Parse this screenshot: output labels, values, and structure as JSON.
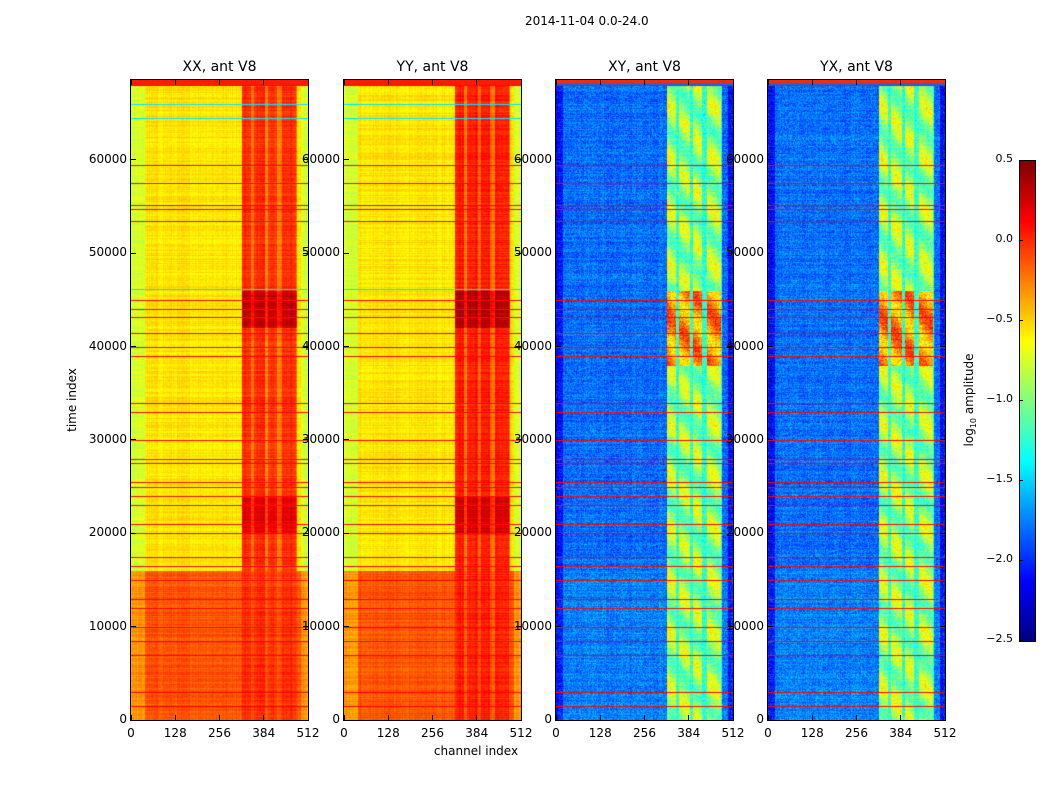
{
  "chart_data": {
    "type": "heatmap",
    "suptitle": "2014-11-04 0.0-24.0",
    "xlabel": "channel index",
    "ylabel": "time index",
    "xlim": [
      0,
      512
    ],
    "ylim": [
      0,
      68571
    ],
    "xticks": [
      "0",
      "128",
      "256",
      "384",
      "512"
    ],
    "yticks": [
      "0",
      "10000",
      "20000",
      "30000",
      "40000",
      "50000",
      "60000"
    ],
    "colorbar": {
      "label_prefix": "log",
      "label_sub": "10",
      "label_suffix": " amplitude",
      "range": [
        -2.5,
        0.5
      ],
      "ticks": [
        "0.5",
        "0.0",
        "−0.5",
        "−1.0",
        "−1.5",
        "−2.0",
        "−2.5"
      ],
      "colormap": "jet"
    },
    "panels": [
      {
        "title": "XX, ant V8",
        "kind": "auto",
        "base": -0.55,
        "low_time_base": -0.12,
        "band_level": -0.1
      },
      {
        "title": "YY, ant V8",
        "kind": "auto",
        "base": -0.55,
        "low_time_base": -0.12,
        "band_level": -0.05
      },
      {
        "title": "XY, ant V8",
        "kind": "cross",
        "base": -1.8,
        "low_time_base": -1.75,
        "band_level": -0.9
      },
      {
        "title": "YX, ant V8",
        "kind": "cross",
        "base": -1.8,
        "low_time_base": -1.75,
        "band_level": -0.9
      }
    ],
    "low_time_boundary": 16000,
    "band_channels": [
      [
        320,
        345
      ],
      [
        355,
        385
      ],
      [
        395,
        422
      ],
      [
        435,
        475
      ]
    ],
    "flagged_times": [
      68000,
      59500,
      57500,
      55200,
      54800,
      53500,
      45000,
      44000,
      43200,
      41500,
      40000,
      39000,
      34000,
      33000,
      30000,
      28000,
      27500,
      25500,
      25000,
      24000,
      23000,
      21000,
      20000,
      17500,
      16500,
      15000,
      13000,
      12000,
      10000,
      8500,
      7000,
      3000,
      1500
    ],
    "cyan_times": [
      66000,
      64500,
      46200
    ]
  }
}
